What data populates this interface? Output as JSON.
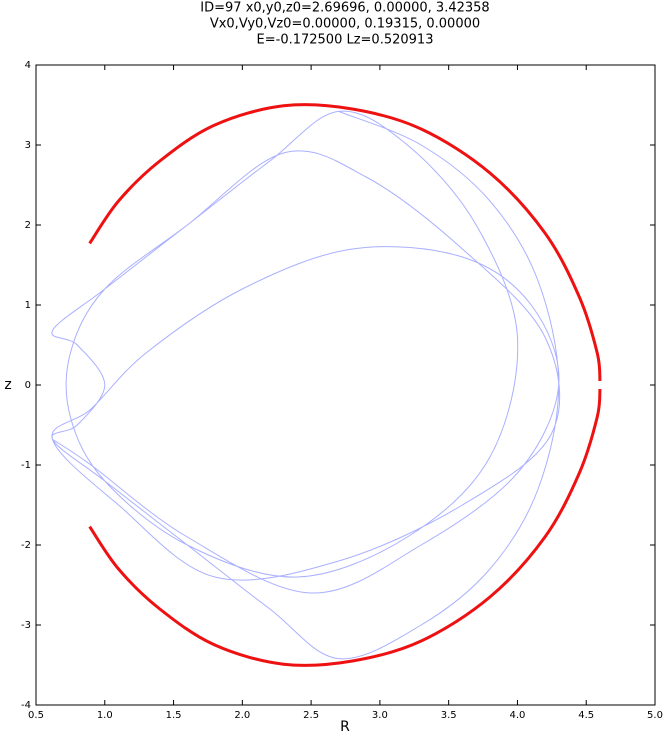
{
  "chart_data": {
    "type": "line",
    "title": [
      "ID=97      x0,y0,z0=2.69696, 0.00000, 3.42358",
      "Vx0,Vy0,Vz0=0.00000, 0.19315, 0.00000",
      "E=-0.172500    Lz=0.520913"
    ],
    "xlabel": "R",
    "ylabel": "z",
    "xlim": [
      0.5,
      5.0
    ],
    "xticks": [
      0.5,
      {
        "value": 1,
        "label": "1.0"
      },
      1.5,
      {
        "value": 2,
        "label": "2.0"
      },
      2.5,
      {
        "value": 3,
        "label": "3.0"
      },
      3.5,
      {
        "value": 4,
        "label": "4.0"
      },
      4.5,
      {
        "value": 5,
        "label": "5.0"
      }
    ],
    "ylim": [
      -4,
      4
    ],
    "yticks": [
      -4,
      -3,
      -2,
      -1,
      0,
      1,
      2,
      3,
      4
    ],
    "series": [
      {
        "color": "#aab0ff",
        "x": [
          2.7,
          3.3,
          3.8,
          4.15,
          4.3,
          4.15,
          3.8,
          3.3,
          2.7,
          2.2,
          1.6,
          1.0,
          0.62,
          0.8,
          1.0,
          0.8,
          0.62,
          1.0,
          1.6,
          2.2,
          2.7,
          3.2,
          3.7,
          4.0,
          3.8,
          3.2,
          2.4,
          1.6,
          1.0,
          0.75,
          0.75,
          1.0,
          1.6,
          2.3,
          2.9,
          3.6,
          4.2,
          4.25,
          3.6,
          2.7,
          1.8,
          1.1,
          0.62,
          0.9,
          1.3,
          2.0,
          2.8,
          3.6,
          4.1,
          4.3,
          4.0,
          3.3,
          2.5,
          1.6,
          0.9,
          0.62
        ],
        "values": [
          3.42,
          3.0,
          2.3,
          1.3,
          0,
          -1.3,
          -2.3,
          -3.0,
          -3.42,
          -2.8,
          -2.0,
          -1.2,
          -0.68,
          -0.5,
          0,
          0.5,
          0.68,
          1.2,
          2.0,
          2.8,
          3.42,
          3.0,
          2.0,
          0.6,
          -0.9,
          -1.9,
          -2.4,
          -2.0,
          -1.2,
          -0.4,
          0.4,
          1.2,
          2.0,
          2.9,
          2.6,
          1.7,
          0.6,
          -0.6,
          -1.5,
          -2.2,
          -2.4,
          -1.5,
          -0.68,
          -0.3,
          0.4,
          1.2,
          1.7,
          1.6,
          1.0,
          0.0,
          -1.1,
          -2.0,
          -2.6,
          -1.9,
          -1.0,
          -0.68
        ]
      },
      {
        "color": "#ee1111",
        "x": [
          0.89,
          1.1,
          1.4,
          1.8,
          2.3,
          2.8,
          3.3,
          3.8,
          4.2,
          4.45,
          4.58,
          4.6,
          null,
          4.6,
          4.58,
          4.45,
          4.2,
          3.8,
          3.3,
          2.8,
          2.3,
          1.8,
          1.4,
          1.1,
          0.89
        ],
        "values": [
          1.77,
          2.3,
          2.8,
          3.25,
          3.49,
          3.45,
          3.2,
          2.65,
          1.9,
          1.1,
          0.4,
          0.05,
          null,
          -0.05,
          -0.4,
          -1.1,
          -1.9,
          -2.65,
          -3.2,
          -3.45,
          -3.49,
          -3.25,
          -2.8,
          -2.3,
          -1.77
        ]
      }
    ]
  }
}
